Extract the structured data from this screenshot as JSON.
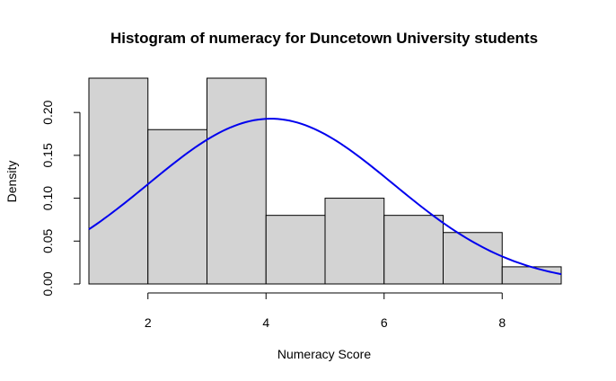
{
  "chart_data": {
    "type": "bar",
    "title": "Histogram of numeracy for Duncetown University students",
    "xlabel": "Numeracy Score",
    "ylabel": "Density",
    "xlim": [
      1,
      9
    ],
    "ylim": [
      0,
      0.24
    ],
    "x_ticks": [
      "2",
      "4",
      "6",
      "8"
    ],
    "y_ticks": [
      "0.00",
      "0.05",
      "0.10",
      "0.15",
      "0.20"
    ],
    "bins": [
      {
        "from": 1,
        "to": 2,
        "density": 0.24
      },
      {
        "from": 2,
        "to": 3,
        "density": 0.18
      },
      {
        "from": 3,
        "to": 4,
        "density": 0.24
      },
      {
        "from": 4,
        "to": 5,
        "density": 0.08
      },
      {
        "from": 5,
        "to": 6,
        "density": 0.1
      },
      {
        "from": 6,
        "to": 7,
        "density": 0.08
      },
      {
        "from": 7,
        "to": 8,
        "density": 0.06
      },
      {
        "from": 8,
        "to": 9,
        "density": 0.02
      }
    ],
    "density_curve": {
      "type": "normal",
      "mean": 4.08,
      "sd": 2.07,
      "x_range": [
        1,
        9
      ],
      "color": "#0000ee"
    },
    "bar_color": "#d3d3d3",
    "grid": false
  }
}
